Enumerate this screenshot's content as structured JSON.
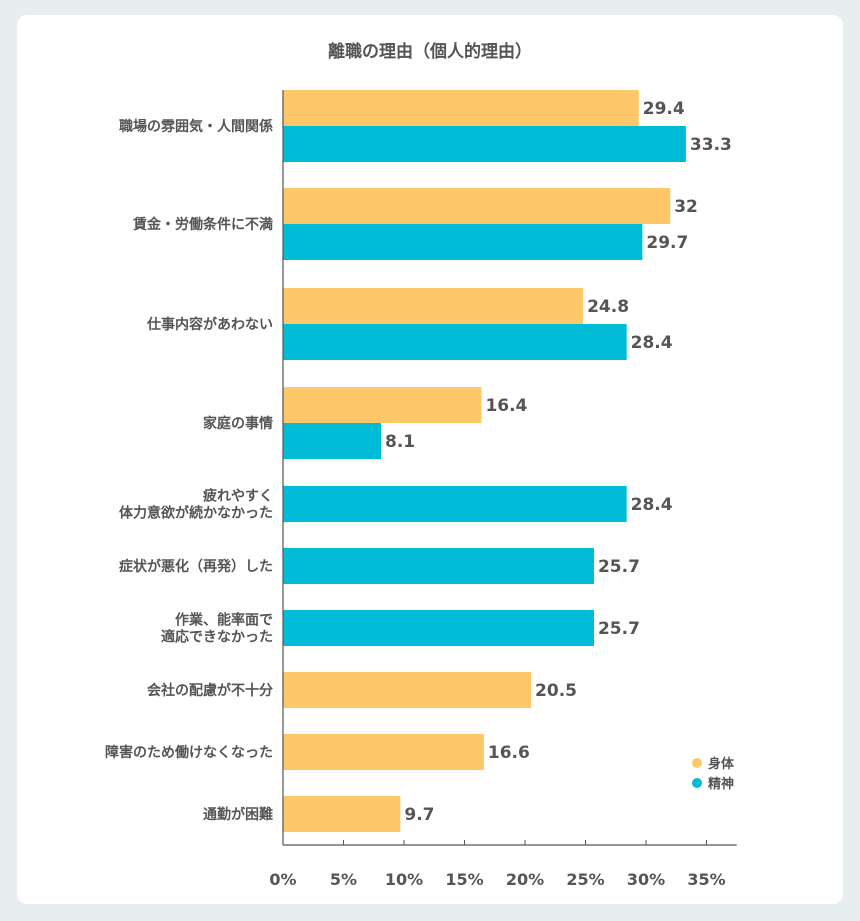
{
  "chart_data": {
    "type": "bar",
    "orientation": "horizontal",
    "title": "離職の理由（個人的理由）",
    "categories": [
      [
        "職場の雰囲気・人間関係"
      ],
      [
        "賃金・労働条件に不満"
      ],
      [
        "仕事内容があわない"
      ],
      [
        "家庭の事情"
      ],
      [
        "疲れやすく",
        "体力意欲が続かなかった"
      ],
      [
        "症状が悪化（再発）した"
      ],
      [
        "作業、能率面で",
        "適応できなかった"
      ],
      [
        "会社の配慮が不十分"
      ],
      [
        "障害のため働けなくなった"
      ],
      [
        "通勤が困難"
      ]
    ],
    "series": [
      {
        "name": "身体",
        "color": "#fdc76a",
        "values": [
          29.4,
          32,
          24.8,
          16.4,
          null,
          null,
          null,
          20.5,
          16.6,
          9.7
        ]
      },
      {
        "name": "精神",
        "color": "#00bcd6",
        "values": [
          33.3,
          29.7,
          28.4,
          8.1,
          28.4,
          25.7,
          25.7,
          null,
          null,
          null
        ]
      }
    ],
    "xlim": [
      0,
      35
    ],
    "xticks": [
      0,
      5,
      10,
      15,
      20,
      25,
      30,
      35
    ],
    "tick_suffix": "%",
    "legend_position": "bottom-right"
  }
}
